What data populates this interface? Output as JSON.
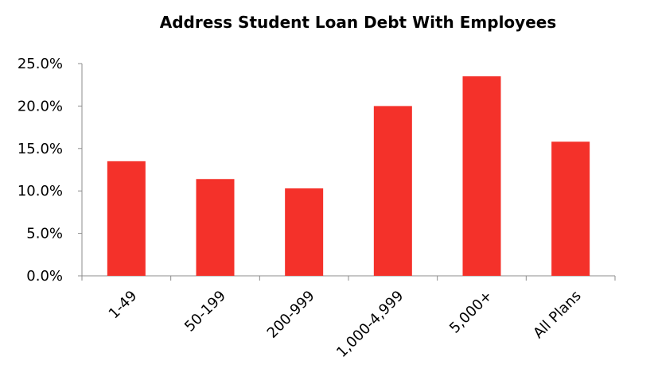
{
  "chart_data": {
    "type": "bar",
    "title": "Address Student Loan Debt With Employees",
    "xlabel": "",
    "ylabel": "",
    "categories": [
      "1-49",
      "50-199",
      "200-999",
      "1,000-4,999",
      "5,000+",
      "All Plans"
    ],
    "values": [
      13.5,
      11.4,
      10.3,
      20.0,
      23.5,
      15.8
    ],
    "y_ticks": [
      "0.0%",
      "5.0%",
      "10.0%",
      "15.0%",
      "20.0%",
      "25.0%"
    ],
    "ylim": [
      0,
      25
    ],
    "grid": false,
    "legend": "none",
    "bar_color": "#f4312a"
  }
}
